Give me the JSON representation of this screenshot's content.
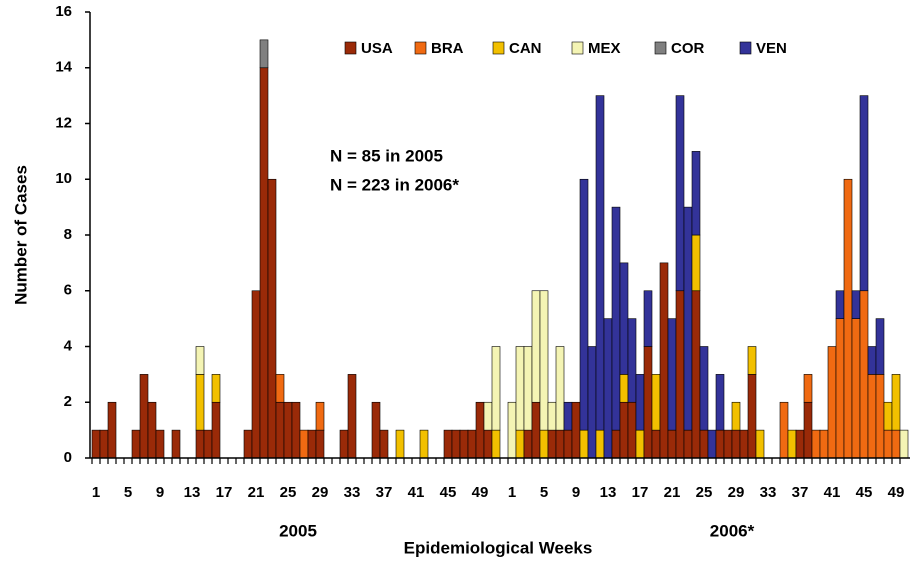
{
  "chart_data": {
    "type": "bar",
    "stacked": true,
    "x_label": "Epidemiological Weeks",
    "y_label": "Number of Cases",
    "annotations": [
      "N = 85 in 2005",
      "N = 223 in 2006*"
    ],
    "year_labels": [
      "2005",
      "2006*"
    ],
    "legend": "top",
    "ylim": [
      0,
      16
    ],
    "yticks": [
      0,
      2,
      4,
      6,
      8,
      10,
      12,
      14,
      16
    ],
    "categories": [
      "1",
      null,
      null,
      null,
      "5",
      null,
      null,
      null,
      "9",
      null,
      null,
      null,
      "13",
      null,
      null,
      null,
      "17",
      null,
      null,
      null,
      "21",
      null,
      null,
      null,
      "25",
      null,
      null,
      null,
      "29",
      null,
      null,
      null,
      "33",
      null,
      null,
      null,
      "37",
      null,
      null,
      null,
      "41",
      null,
      null,
      null,
      "45",
      null,
      null,
      null,
      "49",
      null,
      null,
      null,
      "1",
      null,
      null,
      null,
      "5",
      null,
      null,
      null,
      "9",
      null,
      null,
      null,
      "13",
      null,
      null,
      null,
      "17",
      null,
      null,
      null,
      "21",
      null,
      null,
      null,
      "25",
      null,
      null,
      null,
      "29",
      null,
      null,
      null,
      "33",
      null,
      null,
      null,
      "37",
      null,
      null,
      null,
      "41",
      null,
      null,
      null,
      "45",
      null,
      null,
      null,
      "49",
      null
    ],
    "series": [
      {
        "name": "USA",
        "color": "#9a2a08",
        "values": [
          1,
          1,
          2,
          0,
          0,
          1,
          3,
          2,
          1,
          0,
          1,
          0,
          0,
          1,
          1,
          2,
          0,
          0,
          0,
          1,
          6,
          14,
          10,
          2,
          2,
          2,
          0,
          1,
          1,
          0,
          0,
          1,
          3,
          0,
          0,
          2,
          1,
          0,
          0,
          0,
          0,
          0,
          0,
          0,
          1,
          1,
          1,
          1,
          2,
          1,
          0,
          0,
          0,
          0,
          1,
          2,
          0,
          1,
          1,
          1,
          2,
          0,
          0,
          0,
          0,
          1,
          2,
          2,
          0,
          4,
          1,
          7,
          1,
          6,
          1,
          6,
          1,
          0,
          1,
          1,
          1,
          1,
          3,
          0,
          0,
          0,
          0,
          0,
          1,
          2,
          0,
          0,
          0,
          0,
          0,
          0,
          0,
          0,
          0,
          0,
          0,
          0
        ]
      },
      {
        "name": "BRA",
        "color": "#f06a12",
        "values": [
          0,
          0,
          0,
          0,
          0,
          0,
          0,
          0,
          0,
          0,
          0,
          0,
          0,
          0,
          0,
          0,
          0,
          0,
          0,
          0,
          0,
          0,
          0,
          1,
          0,
          0,
          1,
          0,
          1,
          0,
          0,
          0,
          0,
          0,
          0,
          0,
          0,
          0,
          0,
          0,
          0,
          0,
          0,
          0,
          0,
          0,
          0,
          0,
          0,
          0,
          0,
          0,
          0,
          0,
          0,
          0,
          0,
          0,
          0,
          0,
          0,
          0,
          0,
          0,
          0,
          0,
          0,
          0,
          0,
          0,
          0,
          0,
          0,
          0,
          0,
          0,
          0,
          0,
          0,
          0,
          0,
          0,
          0,
          0,
          0,
          0,
          2,
          0,
          0,
          1,
          1,
          1,
          4,
          5,
          10,
          5,
          6,
          3,
          3,
          1,
          1,
          0
        ]
      },
      {
        "name": "CAN",
        "color": "#f2c000",
        "values": [
          0,
          0,
          0,
          0,
          0,
          0,
          0,
          0,
          0,
          0,
          0,
          0,
          0,
          2,
          0,
          1,
          0,
          0,
          0,
          0,
          0,
          0,
          0,
          0,
          0,
          0,
          0,
          0,
          0,
          0,
          0,
          0,
          0,
          0,
          0,
          0,
          0,
          0,
          1,
          0,
          0,
          1,
          0,
          0,
          0,
          0,
          0,
          0,
          0,
          0,
          1,
          0,
          0,
          1,
          0,
          0,
          1,
          0,
          0,
          0,
          0,
          1,
          0,
          1,
          0,
          0,
          1,
          0,
          1,
          0,
          2,
          0,
          0,
          0,
          0,
          2,
          0,
          0,
          0,
          0,
          1,
          0,
          1,
          1,
          0,
          0,
          0,
          1,
          0,
          0,
          0,
          0,
          0,
          0,
          0,
          0,
          0,
          0,
          0,
          1,
          2,
          0
        ]
      },
      {
        "name": "MEX",
        "color": "#f4f4b4",
        "values": [
          0,
          0,
          0,
          0,
          0,
          0,
          0,
          0,
          0,
          0,
          0,
          0,
          0,
          1,
          0,
          0,
          0,
          0,
          0,
          0,
          0,
          0,
          0,
          0,
          0,
          0,
          0,
          0,
          0,
          0,
          0,
          0,
          0,
          0,
          0,
          0,
          0,
          0,
          0,
          0,
          0,
          0,
          0,
          0,
          0,
          0,
          0,
          0,
          0,
          1,
          3,
          0,
          2,
          3,
          3,
          4,
          5,
          1,
          3,
          0,
          0,
          0,
          0,
          0,
          0,
          0,
          0,
          0,
          0,
          0,
          0,
          0,
          0,
          0,
          0,
          0,
          0,
          0,
          0,
          0,
          0,
          0,
          0,
          0,
          0,
          0,
          0,
          0,
          0,
          0,
          0,
          0,
          0,
          0,
          0,
          0,
          0,
          0,
          0,
          0,
          0,
          1
        ]
      },
      {
        "name": "COR",
        "color": "#808080",
        "values": [
          0,
          0,
          0,
          0,
          0,
          0,
          0,
          0,
          0,
          0,
          0,
          0,
          0,
          0,
          0,
          0,
          0,
          0,
          0,
          0,
          0,
          1,
          0,
          0,
          0,
          0,
          0,
          0,
          0,
          0,
          0,
          0,
          0,
          0,
          0,
          0,
          0,
          0,
          0,
          0,
          0,
          0,
          0,
          0,
          0,
          0,
          0,
          0,
          0,
          0,
          0,
          0,
          0,
          0,
          0,
          0,
          0,
          0,
          0,
          0,
          0,
          0,
          0,
          0,
          0,
          0,
          0,
          0,
          0,
          0,
          0,
          0,
          0,
          0,
          0,
          0,
          0,
          0,
          0,
          0,
          0,
          0,
          0,
          0,
          0,
          0,
          0,
          0,
          0,
          0,
          0,
          0,
          0,
          0,
          0,
          0,
          0,
          0,
          0,
          0,
          0,
          0
        ]
      },
      {
        "name": "VEN",
        "color": "#333399",
        "values": [
          0,
          0,
          0,
          0,
          0,
          0,
          0,
          0,
          0,
          0,
          0,
          0,
          0,
          0,
          0,
          0,
          0,
          0,
          0,
          0,
          0,
          0,
          0,
          0,
          0,
          0,
          0,
          0,
          0,
          0,
          0,
          0,
          0,
          0,
          0,
          0,
          0,
          0,
          0,
          0,
          0,
          0,
          0,
          0,
          0,
          0,
          0,
          0,
          0,
          0,
          0,
          0,
          0,
          0,
          0,
          0,
          0,
          0,
          0,
          1,
          0,
          9,
          4,
          12,
          5,
          8,
          4,
          3,
          2,
          2,
          0,
          0,
          4,
          7,
          8,
          3,
          3,
          1,
          2,
          0,
          0,
          0,
          0,
          0,
          0,
          0,
          0,
          0,
          0,
          0,
          0,
          0,
          0,
          1,
          0,
          1,
          7,
          1,
          2,
          0,
          0,
          0
        ]
      }
    ]
  }
}
